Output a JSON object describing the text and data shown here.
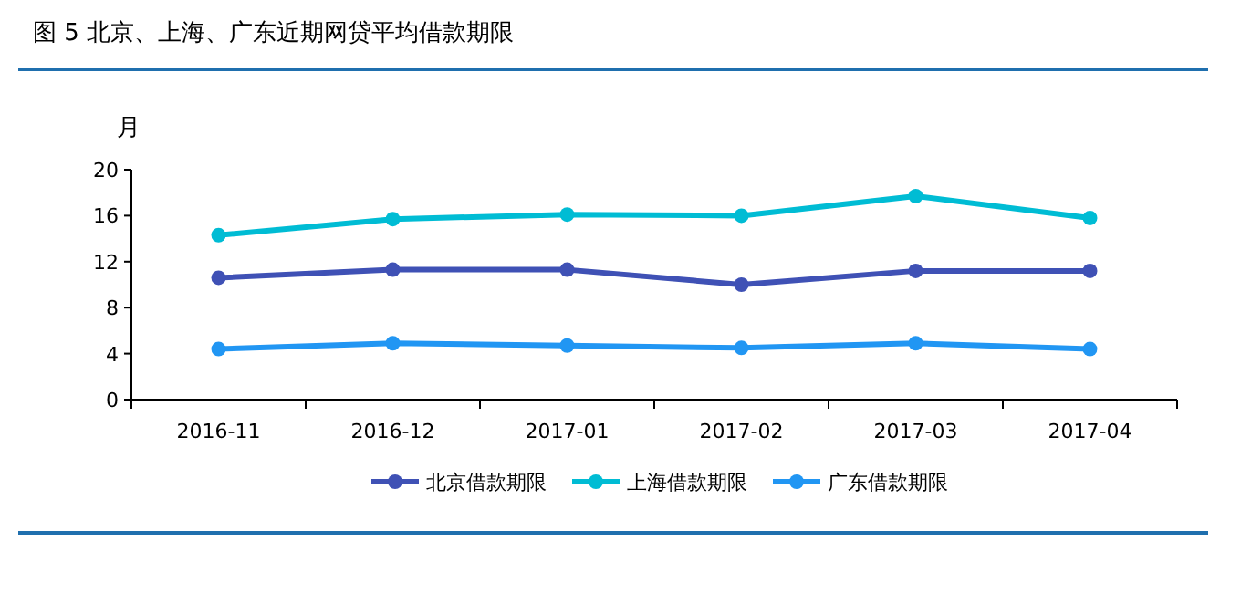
{
  "chart_data": {
    "type": "line",
    "title": "图 5   北京、上海、广东近期网贷平均借款期限",
    "ylabel": "月",
    "categories": [
      "2016-11",
      "2016-12",
      "2017-01",
      "2017-02",
      "2017-03",
      "2017-04"
    ],
    "series": [
      {
        "name": "北京借款期限",
        "color": "#3f51b5",
        "values": [
          10.6,
          11.3,
          11.3,
          10.0,
          11.2,
          11.2
        ]
      },
      {
        "name": "上海借款期限",
        "color": "#00bcd4",
        "values": [
          14.3,
          15.7,
          16.1,
          16.0,
          17.7,
          15.8
        ]
      },
      {
        "name": "广东借款期限",
        "color": "#2196f3",
        "values": [
          4.4,
          4.9,
          4.7,
          4.5,
          4.9,
          4.4
        ]
      }
    ],
    "ylim": [
      0,
      20
    ],
    "yticks": [
      0,
      4,
      8,
      12,
      16,
      20
    ],
    "marker": "circle",
    "legend": "bottom",
    "grid": false
  }
}
